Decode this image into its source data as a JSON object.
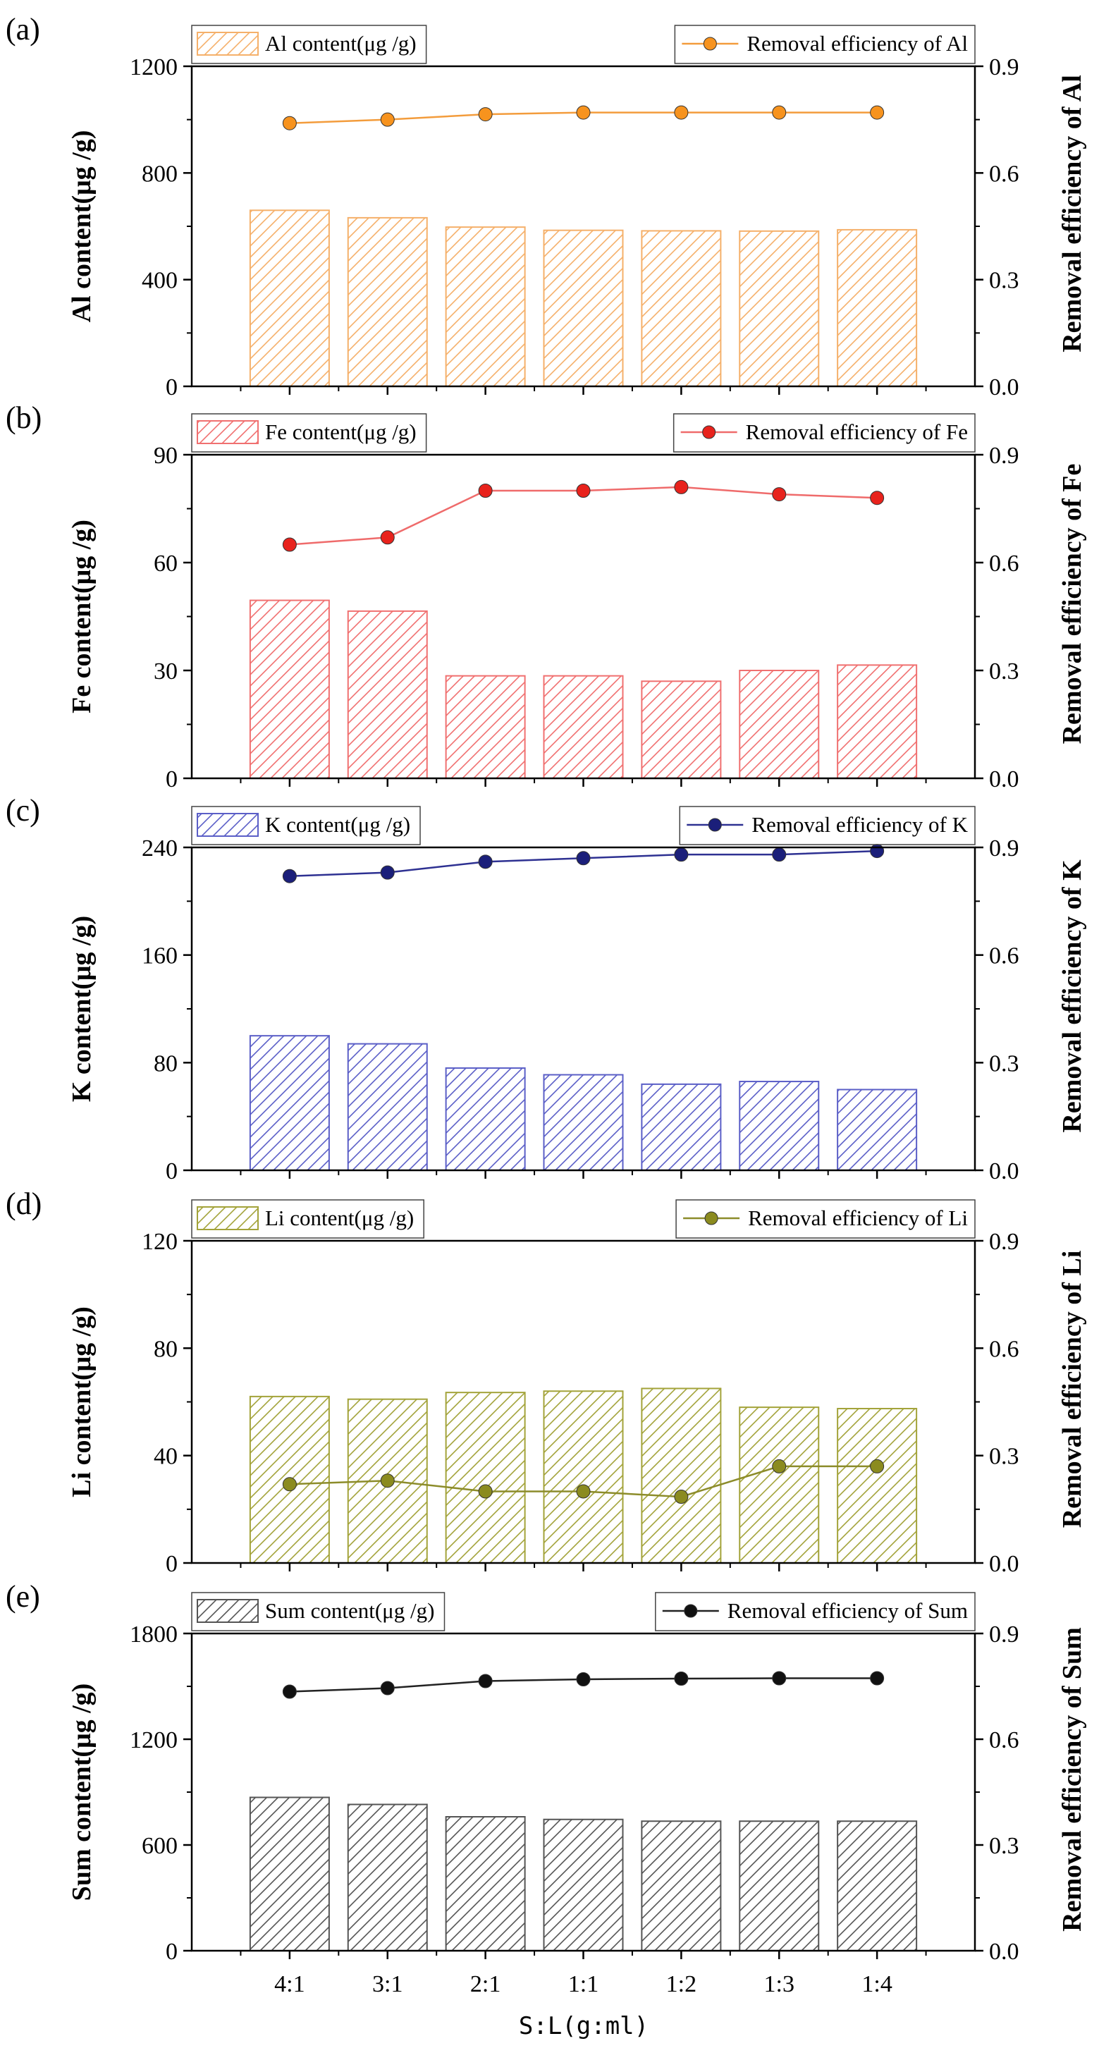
{
  "chart_data": [
    {
      "type": "bar",
      "panel": "(a)",
      "categories": [
        "4:1",
        "3:1",
        "2:1",
        "1:1",
        "1:2",
        "1:3",
        "1:4"
      ],
      "bar_series": {
        "name": "Al content(μg /g)",
        "values": [
          660,
          632,
          597,
          585,
          583,
          582,
          587
        ]
      },
      "line_series": {
        "name": "Removal efficiency of Al",
        "values": [
          0.74,
          0.75,
          0.765,
          0.77,
          0.77,
          0.77,
          0.77
        ]
      },
      "ylabel_left": "Al content(μg /g)",
      "ylabel_right": "Removal efficiency of Al",
      "ylim_left": [
        0,
        1200
      ],
      "ylim_right": [
        0,
        0.9
      ],
      "yticks_left": [
        "0",
        "400",
        "800",
        "1200"
      ],
      "yticks_right": [
        "0.0",
        "0.3",
        "0.6",
        "0.9"
      ],
      "colors": {
        "bar": "#f5b06a",
        "line": "#f39c3c",
        "marker": "#f7931e"
      }
    },
    {
      "type": "bar",
      "panel": "(b)",
      "categories": [
        "4:1",
        "3:1",
        "2:1",
        "1:1",
        "1:2",
        "1:3",
        "1:4"
      ],
      "bar_series": {
        "name": "Fe content(μg /g)",
        "values": [
          49.5,
          46.5,
          28.5,
          28.5,
          27,
          30,
          31.5
        ]
      },
      "line_series": {
        "name": "Removal efficiency of Fe",
        "values": [
          0.65,
          0.67,
          0.8,
          0.8,
          0.81,
          0.79,
          0.78
        ]
      },
      "ylabel_left": "Fe content(μg /g)",
      "ylabel_right": "Removal efficiency of Fe",
      "ylim_left": [
        0,
        90
      ],
      "ylim_right": [
        0,
        0.9
      ],
      "yticks_left": [
        "0",
        "30",
        "60",
        "90"
      ],
      "yticks_right": [
        "0.0",
        "0.3",
        "0.6",
        "0.9"
      ],
      "colors": {
        "bar": "#f07070",
        "line": "#ef6b6b",
        "marker": "#e8221c"
      }
    },
    {
      "type": "bar",
      "panel": "(c)",
      "categories": [
        "4:1",
        "3:1",
        "2:1",
        "1:1",
        "1:2",
        "1:3",
        "1:4"
      ],
      "bar_series": {
        "name": "K content(μg /g)",
        "values": [
          100,
          94,
          76,
          71,
          64,
          66,
          60
        ]
      },
      "line_series": {
        "name": "Removal efficiency of K",
        "values": [
          0.82,
          0.83,
          0.86,
          0.87,
          0.88,
          0.88,
          0.89
        ]
      },
      "ylabel_left": "K content(μg /g)",
      "ylabel_right": "Removal efficiency of K",
      "ylim_left": [
        0,
        240
      ],
      "ylim_right": [
        0,
        0.9
      ],
      "yticks_left": [
        "0",
        "80",
        "160",
        "240"
      ],
      "yticks_right": [
        "0.0",
        "0.3",
        "0.6",
        "0.9"
      ],
      "colors": {
        "bar": "#5b5fc7",
        "line": "#2e3192",
        "marker": "#1b1f7a"
      }
    },
    {
      "type": "bar",
      "panel": "(d)",
      "categories": [
        "4:1",
        "3:1",
        "2:1",
        "1:1",
        "1:2",
        "1:3",
        "1:4"
      ],
      "bar_series": {
        "name": "Li content(μg /g)",
        "values": [
          62,
          61,
          63.5,
          64,
          65,
          58,
          57.5
        ]
      },
      "line_series": {
        "name": "Removal efficiency of Li",
        "values": [
          0.22,
          0.23,
          0.2,
          0.2,
          0.185,
          0.27,
          0.27
        ]
      },
      "ylabel_left": "Li content(μg /g)",
      "ylabel_right": "Removal efficiency of Li",
      "ylim_left": [
        0,
        120
      ],
      "ylim_right": [
        0,
        0.9
      ],
      "yticks_left": [
        "0",
        "40",
        "80",
        "120"
      ],
      "yticks_right": [
        "0.0",
        "0.3",
        "0.6",
        "0.9"
      ],
      "colors": {
        "bar": "#a3a33a",
        "line": "#8c8c2a",
        "marker": "#8b8b1f"
      }
    },
    {
      "type": "bar",
      "panel": "(e)",
      "categories": [
        "4:1",
        "3:1",
        "2:1",
        "1:1",
        "1:2",
        "1:3",
        "1:4"
      ],
      "bar_series": {
        "name": "Sum content(μg /g)",
        "values": [
          870,
          830,
          760,
          745,
          735,
          735,
          735
        ]
      },
      "line_series": {
        "name": "Removal efficiency of Sum",
        "values": [
          0.735,
          0.745,
          0.765,
          0.77,
          0.772,
          0.773,
          0.773
        ]
      },
      "ylabel_left": "Sum content(μg /g)",
      "ylabel_right": "Removal efficiency of Sum",
      "ylim_left": [
        0,
        1800
      ],
      "ylim_right": [
        0,
        0.9
      ],
      "yticks_left": [
        "0",
        "600",
        "1200",
        "1800"
      ],
      "yticks_right": [
        "0.0",
        "0.3",
        "0.6",
        "0.9"
      ],
      "colors": {
        "bar": "#555555",
        "line": "#222222",
        "marker": "#111111"
      }
    }
  ],
  "xlabel": "S:L(g:ml)"
}
